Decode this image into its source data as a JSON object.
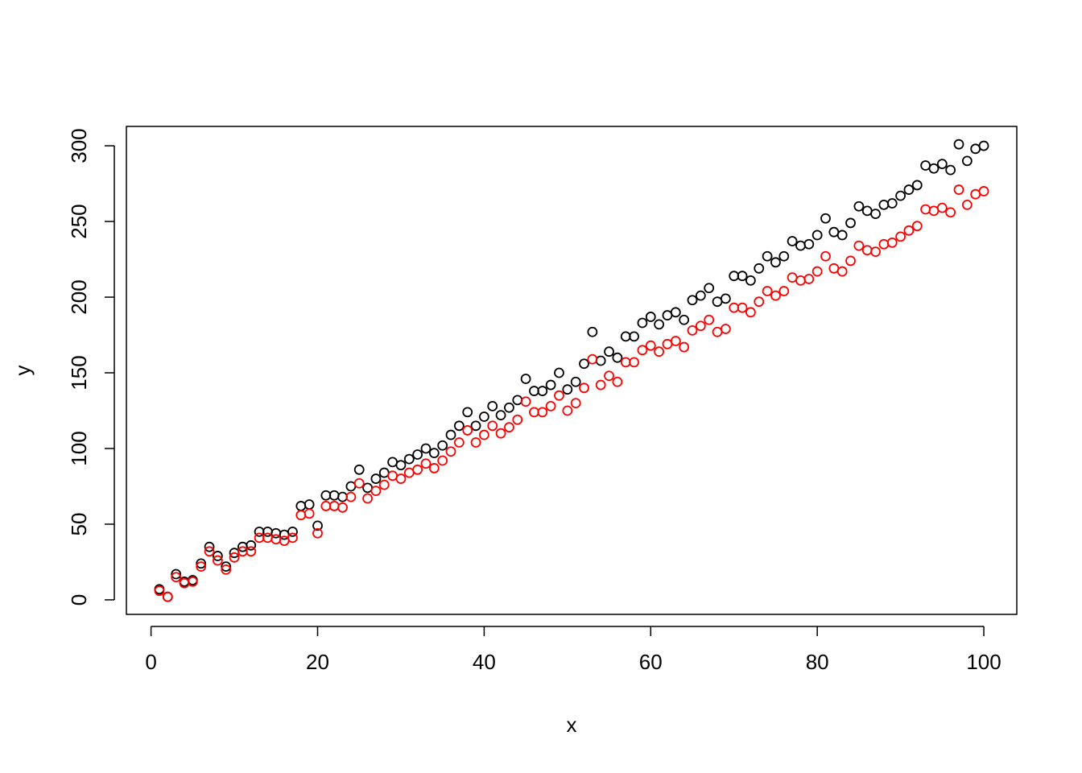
{
  "chart_data": {
    "type": "scatter",
    "xlabel": "x",
    "ylabel": "y",
    "x": [
      1,
      2,
      3,
      4,
      5,
      6,
      7,
      8,
      9,
      10,
      11,
      12,
      13,
      14,
      15,
      16,
      17,
      18,
      19,
      20,
      21,
      22,
      23,
      24,
      25,
      26,
      27,
      28,
      29,
      30,
      31,
      32,
      33,
      34,
      35,
      36,
      37,
      38,
      39,
      40,
      41,
      42,
      43,
      44,
      45,
      46,
      47,
      48,
      49,
      50,
      51,
      52,
      53,
      54,
      55,
      56,
      57,
      58,
      59,
      60,
      61,
      62,
      63,
      64,
      65,
      66,
      67,
      68,
      69,
      70,
      71,
      72,
      73,
      74,
      75,
      76,
      77,
      78,
      79,
      80,
      81,
      82,
      83,
      84,
      85,
      86,
      87,
      88,
      89,
      90,
      91,
      92,
      93,
      94,
      95,
      96,
      97,
      98,
      99,
      100
    ],
    "series": [
      {
        "color": "#000000",
        "values": [
          7,
          2,
          17,
          12,
          13,
          24,
          35,
          29,
          22,
          31,
          35,
          36,
          45,
          45,
          44,
          43,
          45,
          62,
          63,
          49,
          69,
          69,
          68,
          75,
          86,
          74,
          80,
          84,
          91,
          89,
          93,
          96,
          100,
          97,
          102,
          109,
          115,
          124,
          115,
          121,
          128,
          122,
          127,
          132,
          146,
          138,
          138,
          142,
          150,
          139,
          144,
          156,
          177,
          158,
          164,
          160,
          174,
          174,
          183,
          187,
          182,
          188,
          190,
          185,
          198,
          201,
          206,
          197,
          199,
          214,
          214,
          211,
          219,
          227,
          223,
          227,
          237,
          234,
          235,
          241,
          252,
          243,
          241,
          249,
          260,
          257,
          255,
          261,
          262,
          267,
          271,
          274,
          287,
          285,
          288,
          284,
          301,
          290,
          298,
          300
        ]
      },
      {
        "color": "#ff0000",
        "values": [
          6,
          2,
          15,
          11,
          12,
          22,
          32,
          26,
          20,
          28,
          32,
          32,
          41,
          41,
          40,
          39,
          41,
          56,
          57,
          44,
          62,
          62,
          61,
          68,
          77,
          67,
          72,
          76,
          82,
          80,
          84,
          86,
          90,
          87,
          92,
          98,
          104,
          112,
          104,
          109,
          115,
          110,
          114,
          119,
          131,
          124,
          124,
          128,
          135,
          125,
          130,
          140,
          159,
          142,
          148,
          144,
          157,
          157,
          165,
          168,
          164,
          169,
          171,
          167,
          178,
          181,
          185,
          177,
          179,
          193,
          193,
          190,
          197,
          204,
          201,
          204,
          213,
          211,
          212,
          217,
          227,
          219,
          217,
          224,
          234,
          231,
          230,
          235,
          236,
          240,
          244,
          247,
          258,
          257,
          259,
          256,
          271,
          261,
          268,
          270
        ]
      }
    ],
    "xlim": [
      -2.96,
      103.96
    ],
    "xticks": [
      0,
      20,
      40,
      60,
      80,
      100
    ],
    "ylim": [
      -9.6,
      312.8
    ],
    "yticks": [
      0,
      50,
      100,
      150,
      200,
      250,
      300
    ]
  }
}
